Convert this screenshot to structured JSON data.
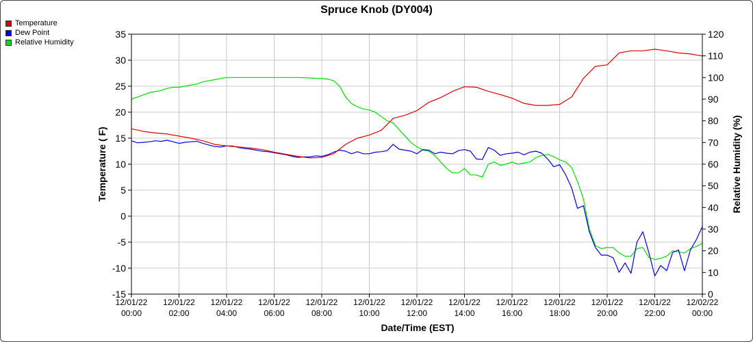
{
  "chart_data": {
    "type": "line",
    "title": "Spruce Knob (DY004)",
    "xlabel": "Date/Time (EST)",
    "ylabel_left": "Temperature ( F)",
    "ylabel_right": "Relative Humidity (%)",
    "ylim_left": [
      -15,
      35
    ],
    "ylim_right": [
      0,
      120
    ],
    "yticks_left": [
      "35",
      "30",
      "25",
      "20",
      "15",
      "10",
      "5",
      "0",
      "-5",
      "-10",
      "-15"
    ],
    "yticks_right": [
      "120",
      "110",
      "100",
      "90",
      "80",
      "70",
      "60",
      "50",
      "40",
      "30",
      "20",
      "10",
      "0"
    ],
    "xlim_hours": [
      0,
      24
    ],
    "xticks": [
      {
        "date": "12/01/22",
        "time": "00:00",
        "hour": 0
      },
      {
        "date": "12/01/22",
        "time": "02:00",
        "hour": 2
      },
      {
        "date": "12/01/22",
        "time": "04:00",
        "hour": 4
      },
      {
        "date": "12/01/22",
        "time": "06:00",
        "hour": 6
      },
      {
        "date": "12/01/22",
        "time": "08:00",
        "hour": 8
      },
      {
        "date": "12/01/22",
        "time": "10:00",
        "hour": 10
      },
      {
        "date": "12/01/22",
        "time": "12:00",
        "hour": 12
      },
      {
        "date": "12/01/22",
        "time": "14:00",
        "hour": 14
      },
      {
        "date": "12/01/22",
        "time": "16:00",
        "hour": 16
      },
      {
        "date": "12/01/22",
        "time": "18:00",
        "hour": 18
      },
      {
        "date": "12/01/22",
        "time": "20:00",
        "hour": 20
      },
      {
        "date": "12/01/22",
        "time": "22:00",
        "hour": 22
      },
      {
        "date": "12/02/22",
        "time": "00:00",
        "hour": 24
      }
    ],
    "grid": true,
    "legend_position": "top-left",
    "series": [
      {
        "name": "Temperature",
        "axis": "left",
        "color": "#e00000",
        "x": [
          0,
          0.5,
          1,
          1.5,
          2,
          2.5,
          3,
          3.5,
          4,
          4.5,
          5,
          5.5,
          6,
          6.5,
          7,
          7.5,
          8,
          8.5,
          9,
          9.5,
          10,
          10.5,
          11,
          11.5,
          12,
          12.5,
          13,
          13.5,
          14,
          14.5,
          15,
          15.5,
          16,
          16.5,
          17,
          17.5,
          18,
          18.5,
          19,
          19.5,
          20,
          20.5,
          21,
          21.5,
          22,
          22.5,
          23,
          23.5,
          24
        ],
        "values": [
          16.8,
          16.3,
          16.0,
          15.8,
          15.4,
          15.0,
          14.5,
          13.8,
          13.5,
          13.3,
          13.1,
          12.8,
          12.3,
          11.9,
          11.5,
          11.2,
          11.3,
          12.0,
          13.8,
          15.0,
          15.6,
          16.5,
          18.8,
          19.4,
          20.3,
          21.9,
          22.8,
          24.0,
          24.9,
          24.8,
          24.0,
          23.4,
          22.7,
          21.7,
          21.3,
          21.3,
          21.5,
          22.9,
          26.5,
          28.8,
          29.1,
          31.4,
          31.8,
          31.8,
          32.1,
          31.8,
          31.4,
          31.2,
          30.8
        ]
      },
      {
        "name": "Dew Point",
        "axis": "left",
        "color": "#0000e0",
        "x": [
          0,
          0.25,
          0.5,
          0.75,
          1,
          1.25,
          1.5,
          1.75,
          2,
          2.25,
          2.5,
          2.75,
          3,
          3.25,
          3.5,
          3.75,
          4,
          4.25,
          4.5,
          4.75,
          5,
          5.25,
          5.5,
          5.75,
          6,
          6.25,
          6.5,
          6.75,
          7,
          7.25,
          7.5,
          7.75,
          8,
          8.25,
          8.5,
          8.75,
          9,
          9.25,
          9.5,
          9.75,
          10,
          10.25,
          10.5,
          10.75,
          11,
          11.25,
          11.5,
          11.75,
          12,
          12.25,
          12.5,
          12.75,
          13,
          13.25,
          13.5,
          13.75,
          14,
          14.25,
          14.5,
          14.75,
          15,
          15.25,
          15.5,
          15.75,
          16,
          16.25,
          16.5,
          16.75,
          17,
          17.25,
          17.5,
          17.75,
          18,
          18.25,
          18.5,
          18.75,
          19,
          19.25,
          19.5,
          19.75,
          20,
          20.25,
          20.5,
          20.75,
          21,
          21.25,
          21.5,
          21.75,
          22,
          22.25,
          22.5,
          22.75,
          23,
          23.25,
          23.5,
          23.75,
          24
        ],
        "values": [
          14.5,
          14.1,
          14.2,
          14.3,
          14.5,
          14.4,
          14.6,
          14.3,
          14.0,
          14.2,
          14.3,
          14.4,
          14.0,
          13.7,
          13.4,
          13.3,
          13.5,
          13.5,
          13.2,
          13.0,
          12.9,
          12.7,
          12.5,
          12.4,
          12.2,
          12.0,
          11.8,
          11.5,
          11.3,
          11.4,
          11.4,
          11.6,
          11.5,
          11.8,
          12.3,
          12.7,
          12.5,
          12.0,
          12.4,
          12.0,
          12.0,
          12.3,
          12.4,
          12.6,
          13.8,
          12.9,
          12.7,
          12.5,
          12.0,
          12.8,
          12.7,
          12.0,
          12.3,
          12.1,
          12.0,
          12.6,
          12.8,
          12.5,
          11.0,
          10.9,
          13.2,
          12.7,
          11.7,
          12.0,
          12.1,
          12.3,
          11.8,
          12.3,
          12.5,
          12.1,
          11.0,
          9.5,
          9.9,
          8.0,
          5.5,
          1.5,
          2.0,
          -3.0,
          -6.0,
          -7.5,
          -7.5,
          -8.0,
          -10.8,
          -9.0,
          -11.0,
          -5.0,
          -3.0,
          -7.0,
          -11.5,
          -9.5,
          -10.5,
          -7.0,
          -6.5,
          -10.5,
          -6.5,
          -4.5,
          -2.0
        ]
      },
      {
        "name": "Relative Humidity",
        "axis": "right",
        "color": "#00dd00",
        "x": [
          0,
          0.25,
          0.5,
          0.75,
          1,
          1.25,
          1.5,
          1.75,
          2,
          2.25,
          2.5,
          2.75,
          3,
          3.5,
          4,
          4.5,
          5,
          5.5,
          6,
          6.5,
          7,
          7.5,
          8,
          8.25,
          8.5,
          8.75,
          9,
          9.25,
          9.5,
          9.75,
          10,
          10.25,
          10.5,
          10.75,
          11,
          11.25,
          11.5,
          11.75,
          12,
          12.25,
          12.5,
          12.75,
          13,
          13.25,
          13.5,
          13.75,
          14,
          14.25,
          14.5,
          14.75,
          15,
          15.25,
          15.5,
          15.75,
          16,
          16.25,
          16.5,
          16.75,
          17,
          17.25,
          17.5,
          17.75,
          18,
          18.25,
          18.5,
          18.75,
          19,
          19.25,
          19.5,
          19.75,
          20,
          20.25,
          20.5,
          20.75,
          21,
          21.25,
          21.5,
          21.75,
          22,
          22.25,
          22.5,
          22.75,
          23,
          23.25,
          23.5,
          23.75,
          24
        ],
        "values": [
          90,
          91,
          92,
          93,
          93.5,
          94,
          95,
          95.5,
          95.5,
          96,
          96.5,
          97,
          98,
          99,
          100,
          100,
          100,
          100,
          100,
          100,
          100,
          99.8,
          99.5,
          99.3,
          98.5,
          96,
          91,
          88,
          86.5,
          85.5,
          85,
          84,
          82,
          80,
          79,
          76,
          73,
          70,
          68,
          66.5,
          66,
          64,
          61,
          58,
          56,
          56,
          58,
          55,
          55,
          54,
          60,
          61,
          59.5,
          60,
          61,
          60,
          60.5,
          61,
          63,
          64,
          64.5,
          63.5,
          62,
          61,
          58.5,
          52,
          44,
          30,
          22.5,
          21,
          21.5,
          21.5,
          19,
          17.5,
          17.5,
          21,
          21.5,
          17,
          16,
          16.5,
          17.5,
          20,
          19.5,
          19,
          21,
          22,
          23.5
        ]
      }
    ]
  }
}
